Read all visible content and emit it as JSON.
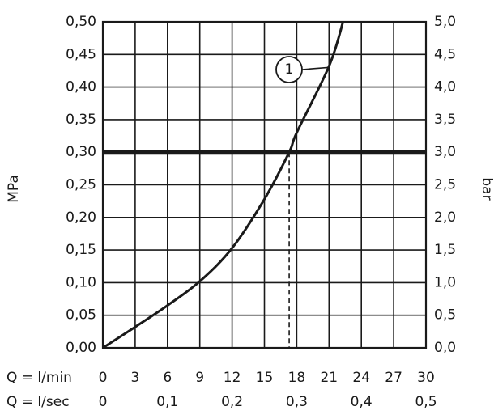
{
  "chart_data": {
    "type": "line",
    "x_axis": {
      "label": "Q = l/min",
      "range": [
        0,
        30
      ],
      "ticks": [
        "0",
        "3",
        "6",
        "9",
        "12",
        "15",
        "18",
        "21",
        "24",
        "27",
        "30"
      ]
    },
    "x2_axis": {
      "label": "Q = l/sec",
      "range": [
        0,
        0.5
      ],
      "ticks": [
        {
          "value": 0,
          "label": "0"
        },
        {
          "value": 0.1,
          "label": "0,1"
        },
        {
          "value": 0.2,
          "label": "0,2"
        },
        {
          "value": 0.3,
          "label": "0,3"
        },
        {
          "value": 0.4,
          "label": "0,4"
        },
        {
          "value": 0.5,
          "label": "0,5"
        }
      ]
    },
    "y_axis": {
      "label": "MPa",
      "range": [
        0,
        0.5
      ],
      "ticks": [
        "0,00",
        "0,05",
        "0,10",
        "0,15",
        "0,20",
        "0,25",
        "0,30",
        "0,35",
        "0,40",
        "0,45",
        "0,50"
      ]
    },
    "y2_axis": {
      "label": "bar",
      "range": [
        0,
        5
      ],
      "ticks": [
        "0,0",
        "0,5",
        "1,0",
        "1,5",
        "2,0",
        "2,5",
        "3,0",
        "3,5",
        "4,0",
        "4,5",
        "5,0"
      ]
    },
    "grid": true,
    "series": [
      {
        "label": "1",
        "x": [
          0,
          3,
          6,
          9,
          12,
          15,
          17.3,
          18,
          21,
          22.3
        ],
        "y": [
          0.0,
          0.032,
          0.065,
          0.102,
          0.153,
          0.228,
          0.3,
          0.33,
          0.432,
          0.5
        ]
      }
    ],
    "reference_line": {
      "y": 0.3
    },
    "marker_x": 17.3
  }
}
